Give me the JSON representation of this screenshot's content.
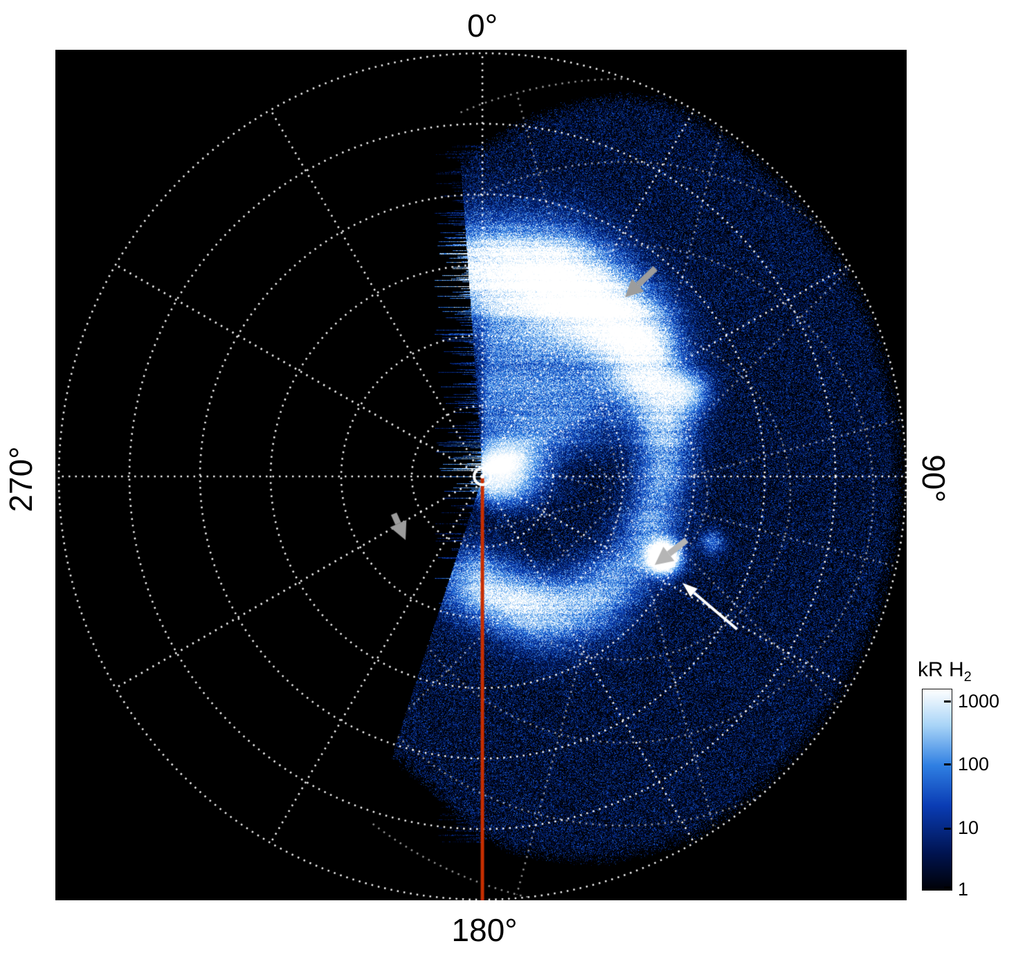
{
  "figure": {
    "background_color": "#ffffff",
    "plot_background": "#000000",
    "angle_labels": {
      "top": "0°",
      "right": "90°",
      "bottom": "180°",
      "left": "270°"
    }
  },
  "colorbar": {
    "title_main": "kR H",
    "title_sub": "2",
    "ticks": [
      "1000",
      "100",
      "10",
      "1"
    ]
  },
  "chart_data": {
    "type": "heatmap",
    "projection": "polar",
    "description": "Polar map of H2 auroral emission brightness (kR, log color scale 1-1000) on a black background with a white dotted polar grid. Noisy blue emission data fills roughly the 0°-198° azimuth sector (right half). A bright white auroral oval arc is seen in the upper-right, a localized bright spot lower-right, a red solid line marks the 180° meridian, a white circle marks the pole, three gray arrows and one white arrow mark features.",
    "units": "kR H2",
    "colormap": {
      "scale": "log",
      "min": 1,
      "max": 1000,
      "stops": [
        {
          "pos": 0.0,
          "color": "#000106"
        },
        {
          "pos": 0.18,
          "color": "#00134f"
        },
        {
          "pos": 0.42,
          "color": "#0a3cb4"
        },
        {
          "pos": 0.62,
          "color": "#2f7fe2"
        },
        {
          "pos": 0.82,
          "color": "#a8d4f7"
        },
        {
          "pos": 1.0,
          "color": "#ffffff"
        }
      ]
    },
    "geometry": {
      "size": 1230,
      "center": [
        617,
        617
      ],
      "outer_radius_px": 612
    },
    "grid": {
      "num_rings": 6,
      "ring_spacing_px": 102,
      "spoke_step_deg": 30,
      "color": "#ffffff",
      "style": "dotted"
    },
    "secondary_grid": {
      "center_offset": [
        205,
        25
      ],
      "rings": [
        120,
        240,
        360,
        480,
        600
      ],
      "spoke_step_deg": 30,
      "rotation_deg": 15,
      "opacity": 0.6
    },
    "sector": {
      "start_deg": -4,
      "end_deg": 198
    },
    "axis_tick_labels": [
      "0°",
      "90°",
      "180°",
      "270°"
    ],
    "features": {
      "edge": {
        "theta": [
          -4,
          0,
          10,
          20,
          26,
          150,
          162,
          176,
          190,
          198
        ],
        "r": [
          470,
          485,
          545,
          595,
          612,
          612,
          592,
          550,
          462,
          430
        ]
      },
      "oval": {
        "theta": [
          -4,
          20,
          50,
          70,
          95,
          120,
          140,
          160,
          180,
          198
        ],
        "amp": [
          0.9,
          1.25,
          1.15,
          0.7,
          0.55,
          0.5,
          0.65,
          0.85,
          0.8,
          0.4
        ],
        "r0": [
          300,
          300,
          295,
          275,
          255,
          245,
          235,
          200,
          160,
          150
        ],
        "sigma": [
          70,
          75,
          60,
          45,
          40,
          45,
          55,
          60,
          55,
          50
        ]
      },
      "spots": [
        {
          "theta": 114,
          "r": 287,
          "sigma": 17,
          "amp": 1.4
        },
        {
          "theta": 106,
          "r": 345,
          "sigma": 12,
          "amp": 0.45
        },
        {
          "theta": 68,
          "r": 325,
          "sigma": 22,
          "amp": 0.5
        },
        {
          "theta": 80,
          "r": 30,
          "sigma": 42,
          "amp": 0.95
        }
      ]
    },
    "annotations": {
      "meridian_line": {
        "angle_deg": 180,
        "color": "#c72e00",
        "width": 5
      },
      "center_marker": {
        "color": "#ffffff",
        "radius": 12
      },
      "arrows": [
        {
          "name": "gray-arrow-upper",
          "tail": [
            867,
            316
          ],
          "tip": [
            823,
            358
          ],
          "color": "#9c9c9c",
          "style": "thick",
          "shaft_width": 9
        },
        {
          "name": "gray-arrow-left",
          "tail": [
            489,
            671
          ],
          "tip": [
            506,
            709
          ],
          "color": "#9c9c9c",
          "style": "thick",
          "shaft_width": 9
        },
        {
          "name": "gray-arrow-lower-right",
          "tail": [
            912,
            709
          ],
          "tip": [
            866,
            745
          ],
          "color": "#b5b5b5",
          "style": "thick",
          "shaft_width": 9
        },
        {
          "name": "white-arrow",
          "tail": [
            985,
            838
          ],
          "tip": [
            906,
            771
          ],
          "color": "#ffffff",
          "style": "thin",
          "shaft_width": 4
        }
      ]
    }
  }
}
